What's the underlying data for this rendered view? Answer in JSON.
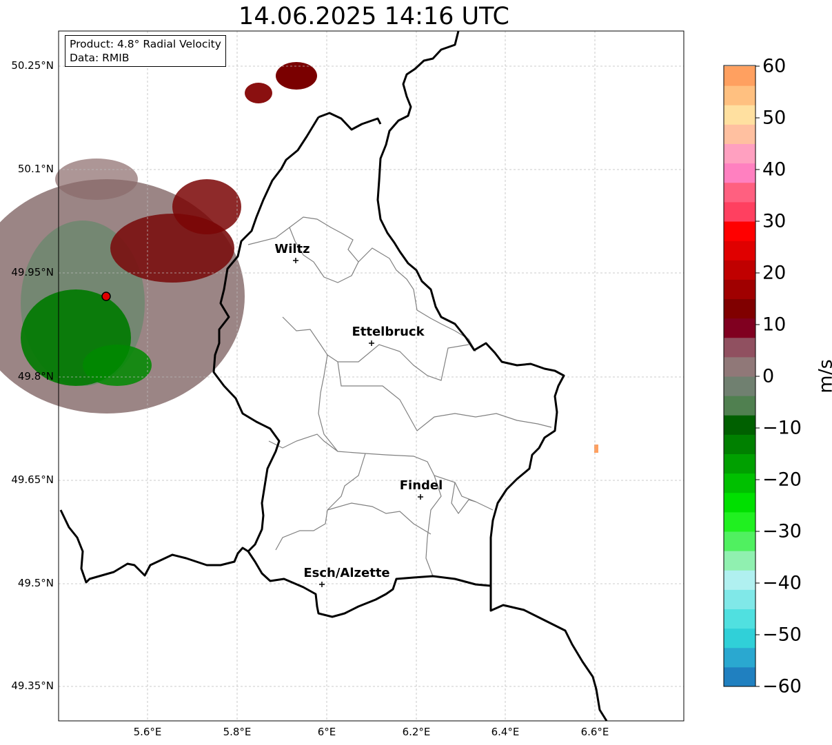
{
  "title": "14.06.2025 14:16 UTC",
  "infobox": {
    "product": "Product: 4.8° Radial Velocity",
    "source": "Data: RMIB"
  },
  "map": {
    "lon_range": [
      5.4,
      6.8
    ],
    "lat_range": [
      49.3,
      50.3
    ],
    "x_ticks": [
      "5.6°E",
      "5.8°E",
      "6°E",
      "6.2°E",
      "6.4°E",
      "6.6°E"
    ],
    "y_ticks": [
      "50.25°N",
      "50.1°N",
      "49.95°N",
      "49.8°N",
      "49.65°N",
      "49.5°N",
      "49.35°N"
    ],
    "gridlines": true,
    "radar_site_marker_color": "#e00000",
    "cities": [
      {
        "name": "Wiltz"
      },
      {
        "name": "Ettelbruck"
      },
      {
        "name": "Findel"
      },
      {
        "name": "Esch/Alzette"
      }
    ]
  },
  "colorbar": {
    "label": "m/s",
    "ticks": [
      "60",
      "50",
      "40",
      "30",
      "20",
      "10",
      "0",
      "−10",
      "−20",
      "−30",
      "−40",
      "−50",
      "−60"
    ],
    "range": [
      -60,
      60
    ],
    "colors": [
      "#2080c0",
      "#2aa8d0",
      "#30d0d8",
      "#50e0e0",
      "#80e8e8",
      "#b0f0f0",
      "#90f0b0",
      "#50f060",
      "#20f020",
      "#00e000",
      "#00c000",
      "#00a000",
      "#008000",
      "#006000",
      "#508050",
      "#708070",
      "#907878",
      "#905060",
      "#800020",
      "#800000",
      "#a00000",
      "#c00000",
      "#e00000",
      "#ff0000",
      "#ff4060",
      "#ff6080",
      "#ff80c0",
      "#ffa0c0",
      "#ffc0a0",
      "#ffe0a0",
      "#ffc080",
      "#ffa060"
    ]
  }
}
